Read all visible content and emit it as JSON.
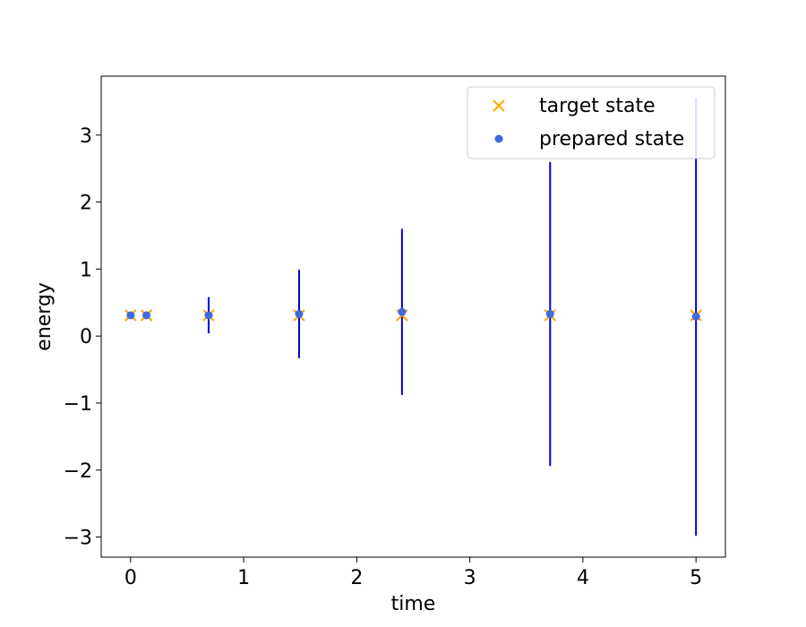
{
  "chart_data": {
    "type": "scatter",
    "title": "",
    "xlabel": "time",
    "ylabel": "energy",
    "xlim": [
      -0.26,
      5.26
    ],
    "ylim": [
      -3.3,
      3.88
    ],
    "xticks": [
      0,
      1,
      2,
      3,
      4,
      5
    ],
    "yticks": [
      -3,
      -2,
      -1,
      0,
      1,
      2,
      3
    ],
    "grid": false,
    "legend_position": "upper right",
    "series": [
      {
        "name": "target state",
        "marker": "x",
        "color": "#ffa500",
        "x": [
          0.0,
          0.14,
          0.69,
          1.49,
          2.4,
          3.71,
          5.0
        ],
        "y": [
          0.31,
          0.31,
          0.31,
          0.31,
          0.31,
          0.31,
          0.31
        ]
      },
      {
        "name": "prepared state",
        "marker": "circle",
        "color": "#4169e1",
        "x": [
          0.0,
          0.14,
          0.69,
          1.49,
          2.4,
          3.71,
          5.0
        ],
        "y": [
          0.31,
          0.31,
          0.31,
          0.33,
          0.36,
          0.33,
          0.29
        ],
        "error": [
          0.02,
          0.04,
          0.27,
          0.66,
          1.24,
          2.27,
          3.27
        ],
        "error_color": "#0000cd"
      }
    ]
  }
}
